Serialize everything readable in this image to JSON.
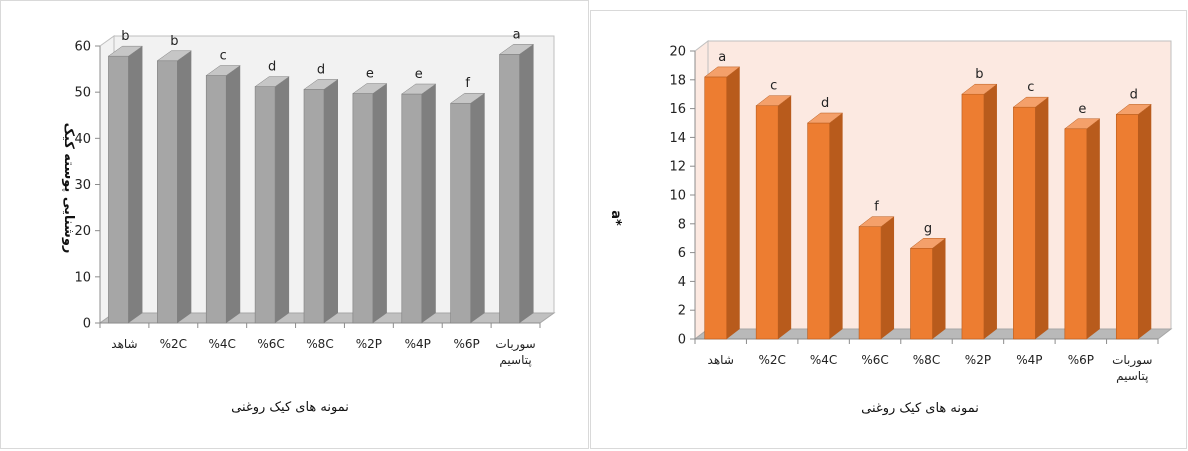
{
  "chart_data": [
    {
      "type": "bar",
      "categories": [
        "شاهد",
        "%2C",
        "%4C",
        "%6C",
        "%8C",
        "%2P",
        "%4P",
        "%6P",
        "سوربات پتاسیم"
      ],
      "values": [
        57.8,
        56.8,
        53.6,
        51.2,
        50.6,
        49.7,
        49.6,
        47.6,
        58.2
      ],
      "significance": [
        "b",
        "b",
        "c",
        "d",
        "d",
        "e",
        "e",
        "f",
        "a"
      ],
      "title": "",
      "xlabel": "نمونه های کیک روغنی",
      "ylabel": "روشنایی پوسته کیک",
      "ylim": [
        0,
        60
      ],
      "yticks": [
        0,
        10,
        20,
        30,
        40,
        50,
        60
      ],
      "grid": false,
      "legend": "none",
      "colors": {
        "bar_front": "#a6a6a6",
        "bar_side": "#7f7f7f",
        "bar_top": "#c6c6c6",
        "wall": "#f2f2f2",
        "floor": "#c0c0c0"
      }
    },
    {
      "type": "bar",
      "categories": [
        "شاهد",
        "%2C",
        "%4C",
        "%6C",
        "%8C",
        "%2P",
        "%4P",
        "%6P",
        "سوربات پتاسیم"
      ],
      "values": [
        18.2,
        16.2,
        15.0,
        7.8,
        6.3,
        17.0,
        16.1,
        14.6,
        15.6
      ],
      "significance": [
        "a",
        "c",
        "d",
        "f",
        "g",
        "b",
        "c",
        "e",
        "d"
      ],
      "title": "",
      "xlabel": "نمونه های کیک روغنی",
      "ylabel": "a*",
      "ylim": [
        0,
        20
      ],
      "yticks": [
        0,
        2,
        4,
        6,
        8,
        10,
        12,
        14,
        16,
        18,
        20
      ],
      "grid": false,
      "legend": "none",
      "colors": {
        "bar_front": "#ed7d31",
        "bar_side": "#b85b1c",
        "bar_top": "#f4a06a",
        "wall": "#fce9e1",
        "floor": "#b9b9b9"
      }
    }
  ]
}
